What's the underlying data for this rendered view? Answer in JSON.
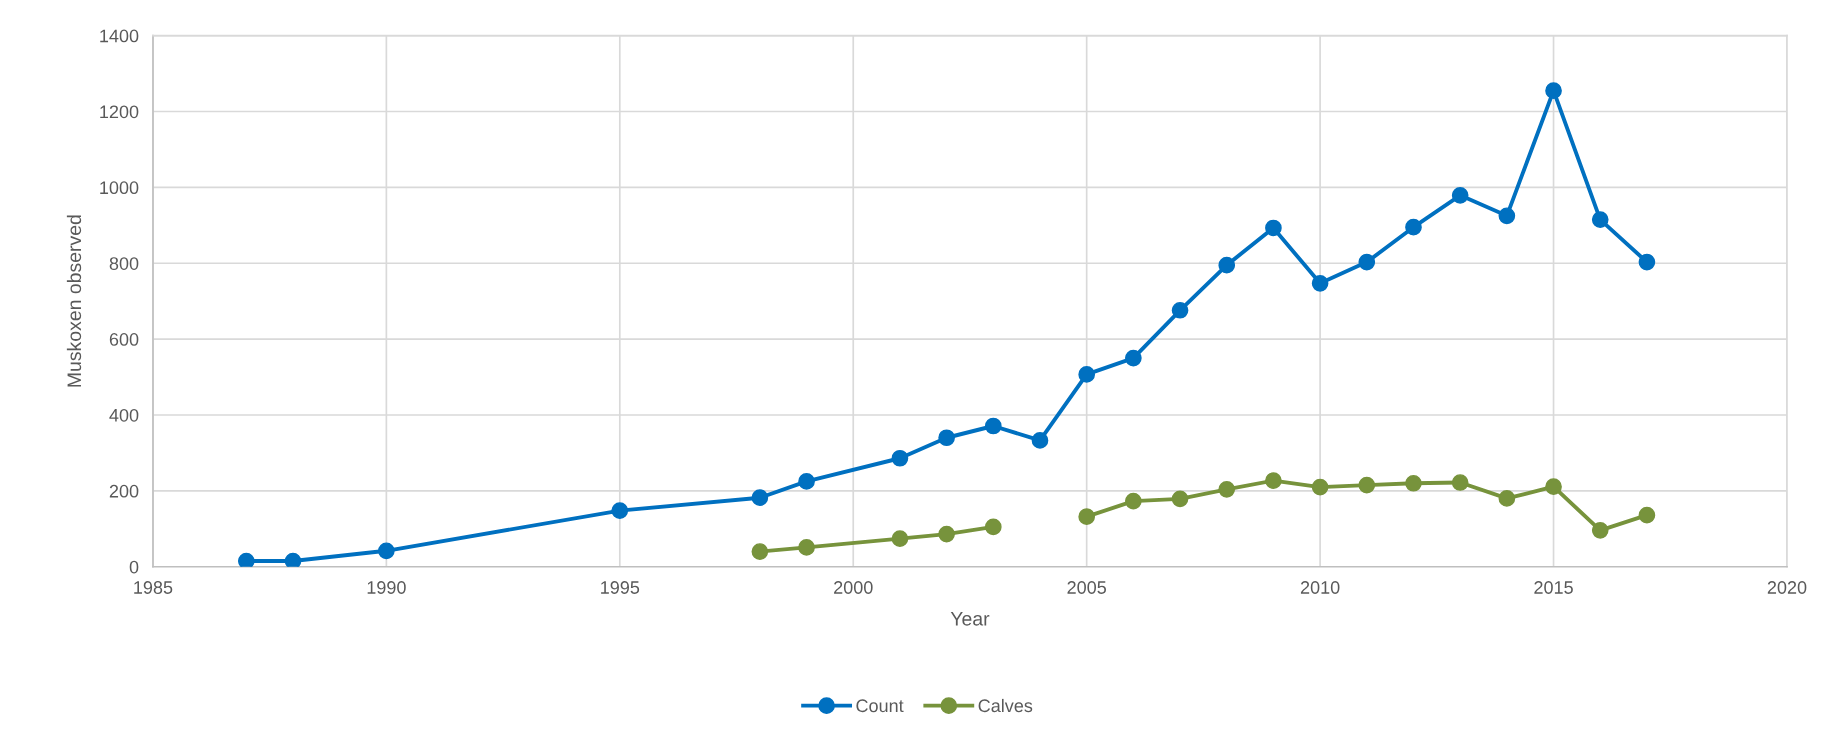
{
  "chart_data": {
    "type": "line",
    "xlabel": "Year",
    "ylabel": "Muskoxen observed",
    "x": [
      1987,
      1988,
      1990,
      1995,
      1998,
      1999,
      2001,
      2002,
      2003,
      2004,
      2005,
      2006,
      2007,
      2008,
      2009,
      2010,
      2011,
      2012,
      2013,
      2014,
      2015,
      2016,
      2017
    ],
    "series": [
      {
        "name": "Count",
        "color": "#0070c0",
        "values": [
          15,
          15,
          42,
          148,
          182,
          225,
          286,
          340,
          371,
          333,
          507,
          550,
          676,
          795,
          893,
          747,
          803,
          895,
          979,
          925,
          1255,
          915,
          803
        ]
      },
      {
        "name": "Calves",
        "color": "#77933c",
        "values": [
          null,
          null,
          null,
          null,
          40,
          51,
          74,
          86,
          105,
          null,
          132,
          173,
          179,
          204,
          227,
          210,
          215,
          220,
          222,
          180,
          211,
          96,
          136
        ]
      }
    ],
    "xlim": [
      1985,
      2020
    ],
    "xticks": [
      1985,
      1990,
      1995,
      2000,
      2005,
      2010,
      2015,
      2020
    ],
    "ylim": [
      0,
      1400
    ],
    "yticks": [
      0,
      200,
      400,
      600,
      800,
      1000,
      1200,
      1400
    ],
    "grid": true,
    "legend": "bottom",
    "marker": "circle",
    "line_style": "solid"
  }
}
